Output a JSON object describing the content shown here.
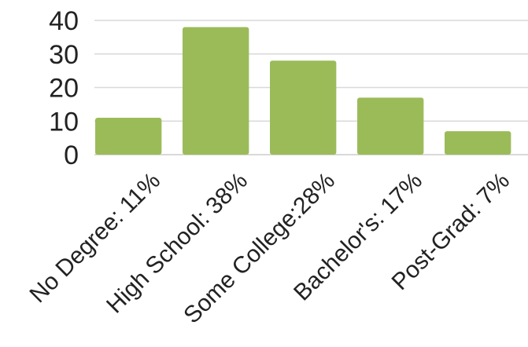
{
  "chart_data": {
    "type": "bar",
    "title": "",
    "xlabel": "",
    "ylabel": "",
    "categories": [
      "No Degree: 11%",
      "High School: 38%",
      "Some College:28%",
      "Bachelor's: 17%",
      "Post-Grad: 7%"
    ],
    "values": [
      11,
      38,
      28,
      17,
      7
    ],
    "ylim": [
      0,
      40
    ],
    "yticks": [
      0,
      10,
      20,
      30,
      40
    ],
    "grid": true,
    "legend": "none",
    "bar_color": "#9bbb59",
    "grid_color": "#d9d9d9"
  }
}
